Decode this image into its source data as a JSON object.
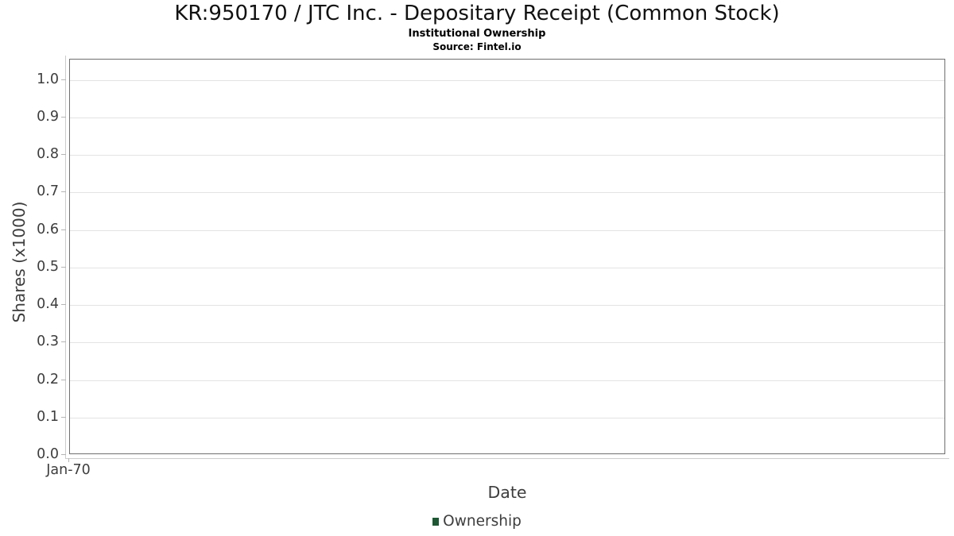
{
  "chart_data": {
    "type": "line",
    "title": "KR:950170 / JTC Inc. - Depositary Receipt (Common Stock)",
    "subtitle": "Institutional Ownership",
    "source": "Source: Fintel.io",
    "xlabel": "Date",
    "ylabel": "Shares (x1000)",
    "x_tick_labels": [
      "Jan-70"
    ],
    "y_tick_labels": [
      "1.0",
      "0.9",
      "0.8",
      "0.7",
      "0.6",
      "0.5",
      "0.4",
      "0.3",
      "0.2",
      "0.1",
      "0.0"
    ],
    "ylim": [
      0.0,
      1.05
    ],
    "grid": "horizontal-only",
    "legend_position": "bottom",
    "legend": {
      "entries": [
        {
          "label": "Ownership",
          "color": "#1d5733"
        }
      ]
    },
    "series": [
      {
        "name": "Ownership",
        "color": "#1d5733",
        "x": [],
        "values": []
      }
    ]
  },
  "colors": {
    "plot_border": "#6f6f6f",
    "axis_line": "#cccccc",
    "tick_mark": "#b5b5b5",
    "gridline": "#e3e3e3",
    "axis_text": "#3d3d3d",
    "title_text": "#111111",
    "legend_green": "#1d5733"
  }
}
